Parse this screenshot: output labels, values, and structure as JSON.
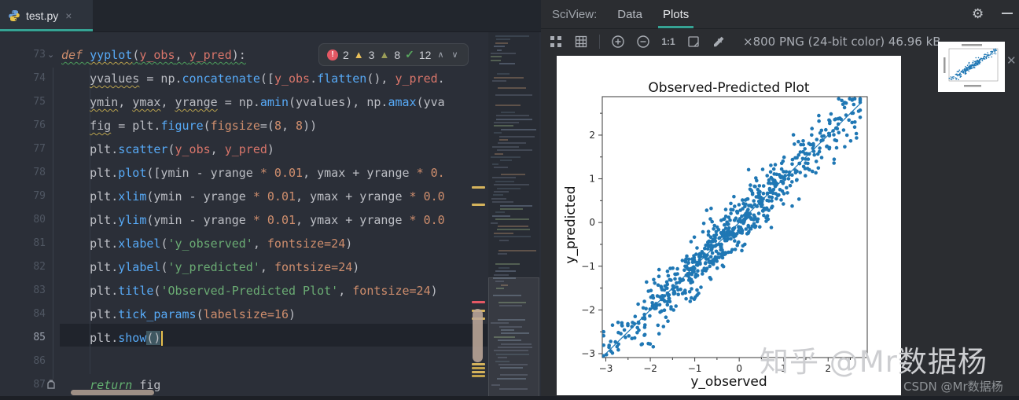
{
  "editor": {
    "tab": {
      "title": "test.py",
      "close_glyph": "×"
    },
    "inspection": {
      "items": [
        {
          "icon": "error-icon",
          "count": "2"
        },
        {
          "icon": "warning-icon",
          "count": "3"
        },
        {
          "icon": "weak-warning-icon",
          "count": "8"
        },
        {
          "icon": "typo-icon",
          "count": "12"
        }
      ],
      "prev_glyph": "∧",
      "next_glyph": "∨"
    },
    "lines": [
      {
        "num": "73",
        "tokens": [
          [
            "c-kw u-g",
            "def "
          ],
          [
            "c-fn u-y",
            "yyplot"
          ],
          [
            "c-pl u-g",
            "("
          ],
          [
            "c-par u-g",
            "y_obs"
          ],
          [
            "c-pl u-g",
            ", "
          ],
          [
            "c-par u-g",
            "y_pred"
          ],
          [
            "c-pl u-g",
            "):"
          ]
        ]
      },
      {
        "num": "74",
        "tokens": [
          [
            "c-pl",
            "    "
          ],
          [
            "c-pl u-y",
            "yvalues"
          ],
          [
            "c-pl",
            " = np."
          ],
          [
            "c-fn",
            "concatenate"
          ],
          [
            "c-pl",
            "(["
          ],
          [
            "c-par",
            "y_obs"
          ],
          [
            "c-pl",
            "."
          ],
          [
            "c-fn",
            "flatten"
          ],
          [
            "c-pl",
            "(), "
          ],
          [
            "c-par",
            "y_pred"
          ],
          [
            "c-pl",
            "."
          ]
        ]
      },
      {
        "num": "75",
        "tokens": [
          [
            "c-pl",
            "    "
          ],
          [
            "c-pl u-y",
            "ymin"
          ],
          [
            "c-pl",
            ", "
          ],
          [
            "c-pl u-y",
            "ymax"
          ],
          [
            "c-pl",
            ", "
          ],
          [
            "c-pl u-y",
            "yrange"
          ],
          [
            "c-pl",
            " = np."
          ],
          [
            "c-fn",
            "amin"
          ],
          [
            "c-pl",
            "(yvalues), np."
          ],
          [
            "c-fn",
            "amax"
          ],
          [
            "c-pl",
            "(yva"
          ]
        ]
      },
      {
        "num": "76",
        "tokens": [
          [
            "c-pl",
            "    "
          ],
          [
            "c-pl u-y",
            "fig"
          ],
          [
            "c-pl",
            " = plt."
          ],
          [
            "c-fn",
            "figure"
          ],
          [
            "c-pl",
            "("
          ],
          [
            "c-num",
            "figsize"
          ],
          [
            "c-pl",
            "=("
          ],
          [
            "c-num",
            "8"
          ],
          [
            "c-pl",
            ", "
          ],
          [
            "c-num",
            "8"
          ],
          [
            "c-pl",
            "))"
          ]
        ]
      },
      {
        "num": "77",
        "tokens": [
          [
            "c-pl",
            "    plt."
          ],
          [
            "c-fn",
            "scatter"
          ],
          [
            "c-pl",
            "("
          ],
          [
            "c-par",
            "y_obs"
          ],
          [
            "c-pl",
            ", "
          ],
          [
            "c-par",
            "y_pred"
          ],
          [
            "c-pl",
            ")"
          ]
        ]
      },
      {
        "num": "78",
        "tokens": [
          [
            "c-pl",
            "    plt."
          ],
          [
            "c-fn",
            "plot"
          ],
          [
            "c-pl",
            "([ymin - yrange "
          ],
          [
            "c-num",
            "* 0.01"
          ],
          [
            "c-pl",
            ", ymax + yrange "
          ],
          [
            "c-num",
            "* 0."
          ]
        ]
      },
      {
        "num": "79",
        "tokens": [
          [
            "c-pl",
            "    plt."
          ],
          [
            "c-fn",
            "xlim"
          ],
          [
            "c-pl",
            "(ymin - yrange "
          ],
          [
            "c-num",
            "* 0.01"
          ],
          [
            "c-pl",
            ", ymax + yrange "
          ],
          [
            "c-num",
            "* 0.0"
          ]
        ]
      },
      {
        "num": "80",
        "tokens": [
          [
            "c-pl",
            "    plt."
          ],
          [
            "c-fn",
            "ylim"
          ],
          [
            "c-pl",
            "(ymin - yrange "
          ],
          [
            "c-num",
            "* 0.01"
          ],
          [
            "c-pl",
            ", ymax + yrange "
          ],
          [
            "c-num",
            "* 0.0"
          ]
        ]
      },
      {
        "num": "81",
        "tokens": [
          [
            "c-pl",
            "    plt."
          ],
          [
            "c-fn",
            "xlabel"
          ],
          [
            "c-pl",
            "("
          ],
          [
            "c-str",
            "'y_observed'"
          ],
          [
            "c-pl",
            ", "
          ],
          [
            "c-num",
            "fontsize=24"
          ],
          [
            "c-pl",
            ")"
          ]
        ]
      },
      {
        "num": "82",
        "tokens": [
          [
            "c-pl",
            "    plt."
          ],
          [
            "c-fn",
            "ylabel"
          ],
          [
            "c-pl",
            "("
          ],
          [
            "c-str",
            "'y_predicted'"
          ],
          [
            "c-pl",
            ", "
          ],
          [
            "c-num",
            "fontsize=24"
          ],
          [
            "c-pl",
            ")"
          ]
        ]
      },
      {
        "num": "83",
        "tokens": [
          [
            "c-pl",
            "    plt."
          ],
          [
            "c-fn",
            "title"
          ],
          [
            "c-pl",
            "("
          ],
          [
            "c-str",
            "'Observed-Predicted Plot'"
          ],
          [
            "c-pl",
            ", "
          ],
          [
            "c-num",
            "fontsize=24"
          ],
          [
            "c-pl",
            ")"
          ]
        ]
      },
      {
        "num": "84",
        "tokens": [
          [
            "c-pl",
            "    plt."
          ],
          [
            "c-fn",
            "tick_params"
          ],
          [
            "c-pl",
            "("
          ],
          [
            "c-num",
            "labelsize=16"
          ],
          [
            "c-pl",
            ")"
          ]
        ]
      },
      {
        "num": "85",
        "tokens": [
          [
            "c-pl",
            "    plt."
          ],
          [
            "c-fn",
            "show"
          ],
          [
            "c-pl sel-paren",
            "()"
          ],
          [
            "caret",
            ""
          ]
        ],
        "current": true
      },
      {
        "num": "86",
        "tokens": []
      },
      {
        "num": "87",
        "tokens": [
          [
            "c-pl",
            "    "
          ],
          [
            "c-ret",
            "return "
          ],
          [
            "c-pl",
            "fig"
          ]
        ]
      }
    ]
  },
  "sciview": {
    "title": "SciView:",
    "tabs": [
      {
        "label": "Data",
        "active": false
      },
      {
        "label": "Plots",
        "active": true
      }
    ],
    "image_info": "×800 PNG (24-bit color) 46.96 kB",
    "toolbar_icons": [
      "fit-content-icon",
      "grid-icon",
      "zoom-in-icon",
      "zoom-out-icon",
      "actual-size-icon",
      "crop-icon",
      "eyedropper-icon"
    ],
    "zoom_actual_label": "1:1",
    "thumb_close_glyph": "✕"
  },
  "chart_data": {
    "type": "scatter",
    "title": "Observed-Predicted Plot",
    "xlabel": "y_observed",
    "ylabel": "y_predicted",
    "xlim": [
      -3.08,
      2.88
    ],
    "ylim": [
      -3.09,
      2.88
    ],
    "xticks": [
      -3,
      -2,
      -1,
      0,
      1,
      2
    ],
    "yticks": [
      -3,
      -2,
      -1,
      0,
      1,
      2
    ],
    "minor_tick_step": 0.5,
    "grid": false,
    "legend": "none",
    "identity_line": {
      "from": [
        -3.05,
        -3.05
      ],
      "to": [
        2.72,
        2.72
      ]
    },
    "points_model": {
      "n": 640,
      "x_mean": -0.25,
      "x_sd": 1.2,
      "x_range": [
        -3.05,
        2.72
      ],
      "noise_sd": 0.32,
      "relation": "y = x + noise",
      "seed": 11
    },
    "marker_color": "#1f77b4"
  },
  "watermark": {
    "main": "知乎 @Mr数据杨",
    "sub": "CSDN @Mr数据杨"
  }
}
